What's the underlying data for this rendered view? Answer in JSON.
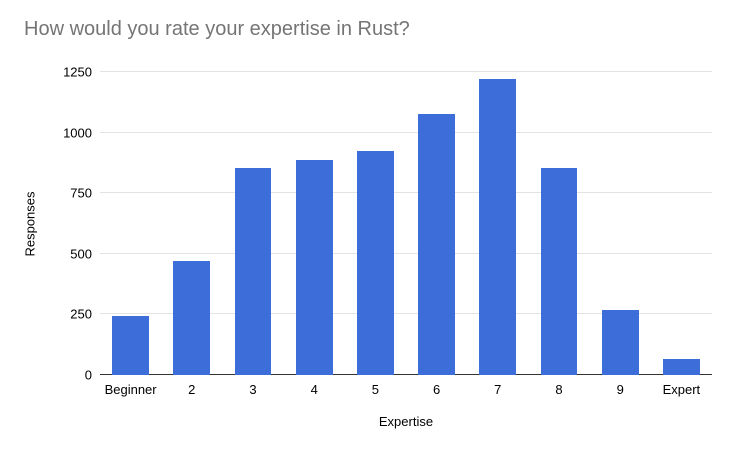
{
  "chart_data": {
    "type": "bar",
    "title": "How would you rate your expertise in Rust?",
    "xlabel": "Expertise",
    "ylabel": "Responses",
    "categories": [
      "Beginner",
      "2",
      "3",
      "4",
      "5",
      "6",
      "7",
      "8",
      "9",
      "Expert"
    ],
    "values": [
      245,
      470,
      855,
      885,
      925,
      1075,
      1220,
      855,
      270,
      65
    ],
    "ylim": [
      0,
      1250
    ],
    "yticks": [
      0,
      250,
      500,
      750,
      1000,
      1250
    ],
    "grid": "horizontal",
    "legend": "none",
    "colors": {
      "bar": "#3D6DD8",
      "title_text": "#757575",
      "axis_text": "#000000",
      "gridline": "#e3e3e3",
      "axis_line": "#333333",
      "background": "#ffffff"
    }
  }
}
